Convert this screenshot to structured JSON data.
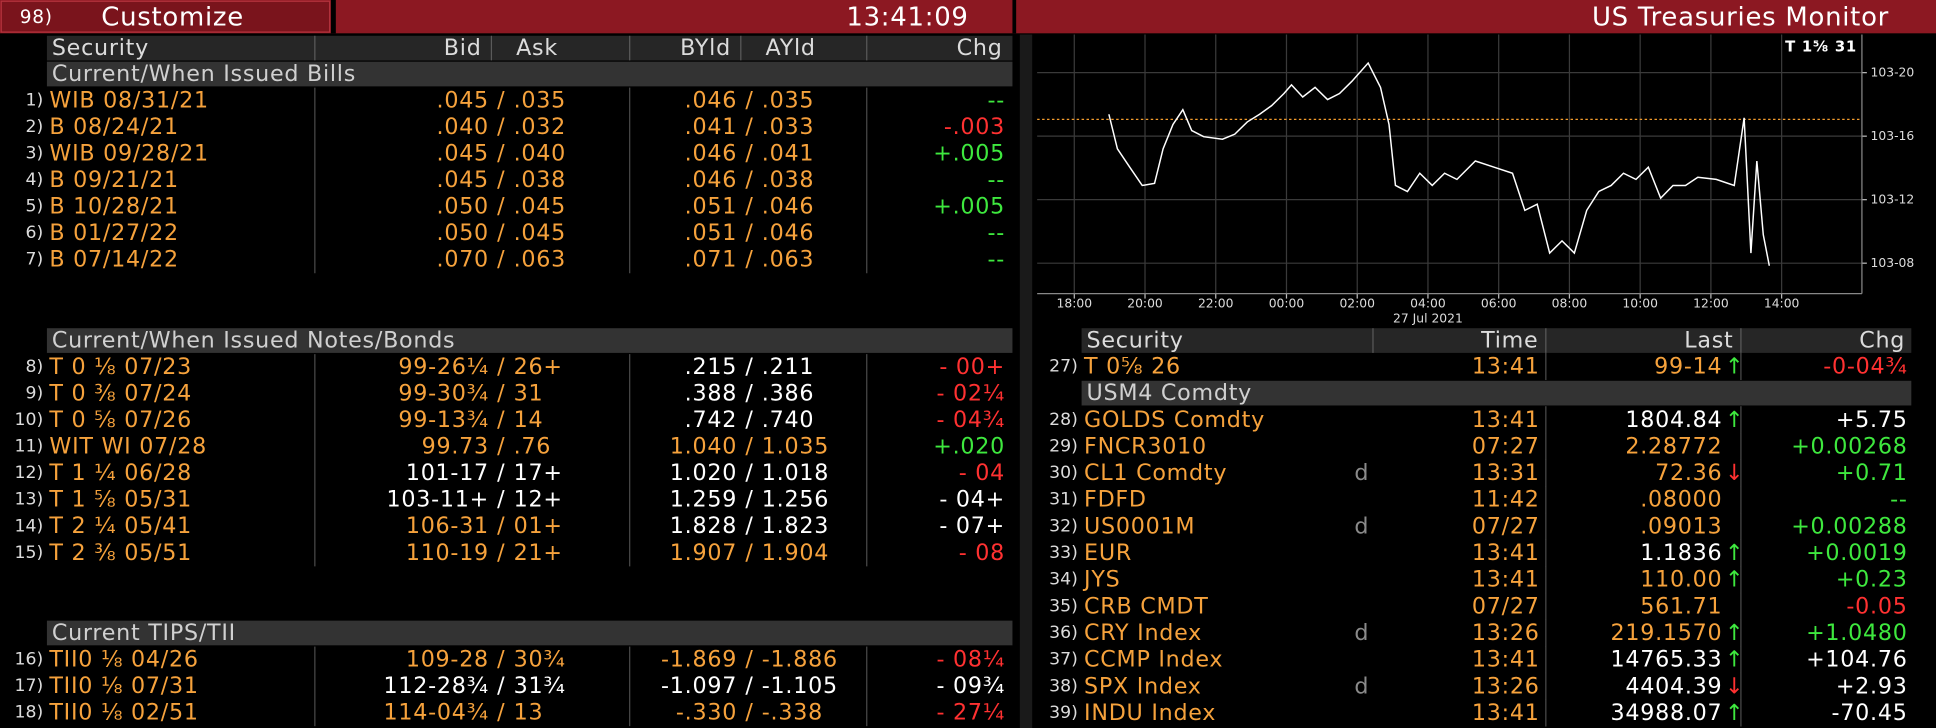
{
  "header": {
    "number": "98)",
    "menu": "Customize",
    "time": "13:41:09",
    "title": "US Treasuries Monitor"
  },
  "left_table": {
    "columns": [
      "Security",
      "Bid",
      "Ask",
      "BYld",
      "AYld",
      "Chg"
    ],
    "separator": "/",
    "sections": [
      {
        "title": "Current/When Issued Bills",
        "rows": [
          {
            "number": "1)",
            "security": "WIB 08/31/21",
            "bid": ".045",
            "ask": ".035",
            "byld": ".046",
            "ayld": ".035",
            "chg": "--",
            "bid_color": "orange",
            "yld_color": "orange",
            "chg_color": "green"
          },
          {
            "number": "2)",
            "security": "B 08/24/21",
            "bid": ".040",
            "ask": ".032",
            "byld": ".041",
            "ayld": ".033",
            "chg": "-.003",
            "bid_color": "orange",
            "yld_color": "orange",
            "chg_color": "red"
          },
          {
            "number": "3)",
            "security": "WIB 09/28/21",
            "bid": ".045",
            "ask": ".040",
            "byld": ".046",
            "ayld": ".041",
            "chg": "+.005",
            "bid_color": "orange",
            "yld_color": "orange",
            "chg_color": "green"
          },
          {
            "number": "4)",
            "security": "B 09/21/21",
            "bid": ".045",
            "ask": ".038",
            "byld": ".046",
            "ayld": ".038",
            "chg": "--",
            "bid_color": "orange",
            "yld_color": "orange",
            "chg_color": "green"
          },
          {
            "number": "5)",
            "security": "B 10/28/21",
            "bid": ".050",
            "ask": ".045",
            "byld": ".051",
            "ayld": ".046",
            "chg": "+.005",
            "bid_color": "orange",
            "yld_color": "orange",
            "chg_color": "green"
          },
          {
            "number": "6)",
            "security": "B 01/27/22",
            "bid": ".050",
            "ask": ".045",
            "byld": ".051",
            "ayld": ".046",
            "chg": "--",
            "bid_color": "orange",
            "yld_color": "orange",
            "chg_color": "green"
          },
          {
            "number": "7)",
            "security": "B 07/14/22",
            "bid": ".070",
            "ask": ".063",
            "byld": ".071",
            "ayld": ".063",
            "chg": "--",
            "bid_color": "orange",
            "yld_color": "orange",
            "chg_color": "green"
          }
        ]
      },
      {
        "title": "Current/When Issued Notes/Bonds",
        "rows": [
          {
            "number": "8)",
            "security": "T 0 ⅛ 07/23",
            "bid": "99-26¼",
            "ask": "26+",
            "byld": ".215",
            "ayld": ".211",
            "chg": "- 00+",
            "bid_color": "orange",
            "yld_color": "white",
            "chg_color": "red"
          },
          {
            "number": "9)",
            "security": "T 0 ⅜ 07/24",
            "bid": "99-30¾",
            "ask": "31",
            "byld": ".388",
            "ayld": ".386",
            "chg": "- 02¼",
            "bid_color": "orange",
            "yld_color": "white",
            "chg_color": "red"
          },
          {
            "number": "10)",
            "security": "T 0 ⅝ 07/26",
            "bid": "99-13¾",
            "ask": "14",
            "byld": ".742",
            "ayld": ".740",
            "chg": "- 04¾",
            "bid_color": "orange",
            "yld_color": "white",
            "chg_color": "red"
          },
          {
            "number": "11)",
            "security": "WIT WI 07/28",
            "bid": "99.73",
            "ask": ".76",
            "byld": "1.040",
            "ayld": "1.035",
            "chg": "+.020",
            "bid_color": "orange",
            "yld_color": "orange",
            "chg_color": "green"
          },
          {
            "number": "12)",
            "security": "T 1 ¼ 06/28",
            "bid": "101-17",
            "ask": "17+",
            "byld": "1.020",
            "ayld": "1.018",
            "chg": "- 04",
            "bid_color": "white",
            "yld_color": "white",
            "chg_color": "red"
          },
          {
            "number": "13)",
            "security": "T 1 ⅝ 05/31",
            "bid": "103-11+",
            "ask": "12+",
            "byld": "1.259",
            "ayld": "1.256",
            "chg": "- 04+",
            "bid_color": "white",
            "yld_color": "white",
            "chg_color": "white"
          },
          {
            "number": "14)",
            "security": "T 2 ¼ 05/41",
            "bid": "106-31",
            "ask": "01+",
            "byld": "1.828",
            "ayld": "1.823",
            "chg": "- 07+",
            "bid_color": "orange",
            "yld_color": "white",
            "chg_color": "white"
          },
          {
            "number": "15)",
            "security": "T 2 ⅜ 05/51",
            "bid": "110-19",
            "ask": "21+",
            "byld": "1.907",
            "ayld": "1.904",
            "chg": "- 08",
            "bid_color": "orange",
            "yld_color": "orange",
            "chg_color": "red"
          }
        ]
      },
      {
        "title": "Current TIPS/TII",
        "rows": [
          {
            "number": "16)",
            "security": "TII0 ⅛ 04/26",
            "bid": "109-28",
            "ask": "30¾",
            "byld": "-1.869",
            "ayld": "-1.886",
            "chg": "- 08¼",
            "bid_color": "orange",
            "yld_color": "orange",
            "chg_color": "red"
          },
          {
            "number": "17)",
            "security": "TII0 ⅛ 07/31",
            "bid": "112-28¾",
            "ask": "31¾",
            "byld": "-1.097",
            "ayld": "-1.105",
            "chg": "- 09¾",
            "bid_color": "white",
            "yld_color": "white",
            "chg_color": "white"
          },
          {
            "number": "18)",
            "security": "TII0 ⅛ 02/51",
            "bid": "114-04¾",
            "ask": "13",
            "byld": "-.330",
            "ayld": "-.338",
            "chg": "- 27¼",
            "bid_color": "orange",
            "yld_color": "orange",
            "chg_color": "red"
          }
        ]
      }
    ]
  },
  "right_table": {
    "columns": [
      "Security",
      "Time",
      "Last",
      "Chg"
    ],
    "rows": [
      {
        "number": "27)",
        "security": "T 0⅝ 26",
        "time": "13:41",
        "last": "99-14",
        "arrow": "↑",
        "chg": "-0-04¾",
        "last_color": "orange",
        "chg_color": "red"
      },
      {
        "section": "USM4 Comdty"
      },
      {
        "number": "28)",
        "security": "GOLDS Comdty",
        "time": "13:41",
        "last": "1804.84",
        "arrow": "↑",
        "chg": "+5.75",
        "last_color": "white",
        "chg_color": "white"
      },
      {
        "number": "29)",
        "security": "FNCR3010",
        "time": "07:27",
        "last": "2.28772",
        "chg": "+0.00268",
        "last_color": "orange",
        "chg_color": "green"
      },
      {
        "number": "30)",
        "security": "CL1 Comdty",
        "flag": "d",
        "time": "13:31",
        "last": "72.36",
        "arrow": "↓",
        "chg": "+0.71",
        "last_color": "orange",
        "chg_color": "green"
      },
      {
        "number": "31)",
        "security": "FDFD",
        "time": "11:42",
        "last": ".08000",
        "chg": "--",
        "last_color": "orange",
        "chg_color": "green"
      },
      {
        "number": "32)",
        "security": "US0001M",
        "flag": "d",
        "time": "07/27",
        "last": ".09013",
        "chg": "+0.00288",
        "last_color": "orange",
        "chg_color": "green"
      },
      {
        "number": "33)",
        "security": "EUR",
        "time": "13:41",
        "last": "1.1836",
        "arrow": "↑",
        "chg": "+0.0019",
        "last_color": "white",
        "chg_color": "green"
      },
      {
        "number": "34)",
        "security": "JYS",
        "time": "13:41",
        "last": "110.00",
        "arrow": "↑",
        "chg": "+0.23",
        "last_color": "orange",
        "chg_color": "green"
      },
      {
        "number": "35)",
        "security": "CRB CMDT",
        "time": "07/27",
        "last": "561.71",
        "chg": "-0.05",
        "last_color": "orange",
        "chg_color": "red"
      },
      {
        "number": "36)",
        "security": "CRY Index",
        "flag": "d",
        "time": "13:26",
        "last": "219.1570",
        "arrow": "↑",
        "chg": "+1.0480",
        "last_color": "orange",
        "chg_color": "green"
      },
      {
        "number": "37)",
        "security": "CCMP Index",
        "time": "13:41",
        "last": "14765.33",
        "arrow": "↑",
        "chg": "+104.76",
        "last_color": "white",
        "chg_color": "white"
      },
      {
        "number": "38)",
        "security": "SPX Index",
        "flag": "d",
        "time": "13:26",
        "last": "4404.39",
        "arrow": "↓",
        "chg": "+2.93",
        "last_color": "white",
        "chg_color": "white"
      },
      {
        "number": "39)",
        "security": "INDU Index",
        "time": "13:41",
        "last": "34988.07",
        "arrow": "↑",
        "chg": "-70.45",
        "last_color": "white",
        "chg_color": "white"
      }
    ]
  },
  "chart_data": {
    "type": "line",
    "title": "T 1⅝ 31",
    "date_label": "27 Jul 2021",
    "color": "#ffffff",
    "grid": true,
    "reference_line": 103.533,
    "reference_color": "#f39c2d",
    "xlim": [
      -1.05,
      22.27
    ],
    "ylim": [
      103.19,
      103.7
    ],
    "xticks": [
      {
        "value": 0,
        "label": "18:00"
      },
      {
        "value": 2,
        "label": "20:00"
      },
      {
        "value": 4,
        "label": "22:00"
      },
      {
        "value": 6,
        "label": "00:00"
      },
      {
        "value": 8,
        "label": "02:00"
      },
      {
        "value": 10,
        "label": "04:00"
      },
      {
        "value": 12,
        "label": "06:00"
      },
      {
        "value": 14,
        "label": "08:00"
      },
      {
        "value": 16,
        "label": "10:00"
      },
      {
        "value": 18,
        "label": "12:00"
      },
      {
        "value": 20,
        "label": "14:00"
      }
    ],
    "yticks": [
      {
        "value": 103.25,
        "label": "103-08"
      },
      {
        "value": 103.375,
        "label": "103-12"
      },
      {
        "value": 103.5,
        "label": "103-16"
      },
      {
        "value": 103.625,
        "label": "103-20"
      }
    ],
    "x": [
      0.98,
      1.22,
      1.57,
      1.92,
      2.27,
      2.51,
      2.79,
      3.07,
      3.32,
      3.66,
      4.19,
      4.54,
      4.89,
      5.24,
      5.58,
      5.93,
      6.14,
      6.46,
      6.81,
      7.16,
      7.5,
      7.85,
      8.31,
      8.66,
      8.9,
      9.08,
      9.42,
      9.77,
      10.12,
      10.47,
      10.82,
      11.34,
      11.87,
      12.39,
      12.74,
      13.09,
      13.44,
      13.79,
      14.14,
      14.49,
      14.83,
      15.18,
      15.53,
      15.88,
      16.23,
      16.58,
      16.93,
      17.28,
      17.63,
      18.15,
      18.66,
      18.94,
      19.13,
      19.3,
      19.48,
      19.65
    ],
    "values": [
      103.543,
      103.475,
      103.439,
      103.403,
      103.407,
      103.475,
      103.523,
      103.552,
      103.511,
      103.499,
      103.494,
      103.504,
      103.528,
      103.543,
      103.56,
      103.584,
      103.601,
      103.577,
      103.596,
      103.572,
      103.584,
      103.608,
      103.644,
      103.596,
      103.523,
      103.403,
      103.391,
      103.427,
      103.403,
      103.427,
      103.415,
      103.451,
      103.439,
      103.427,
      103.354,
      103.366,
      103.27,
      103.294,
      103.27,
      103.354,
      103.391,
      103.403,
      103.427,
      103.415,
      103.439,
      103.378,
      103.403,
      103.403,
      103.419,
      103.415,
      103.403,
      103.536,
      103.27,
      103.451,
      103.306,
      103.245
    ]
  }
}
